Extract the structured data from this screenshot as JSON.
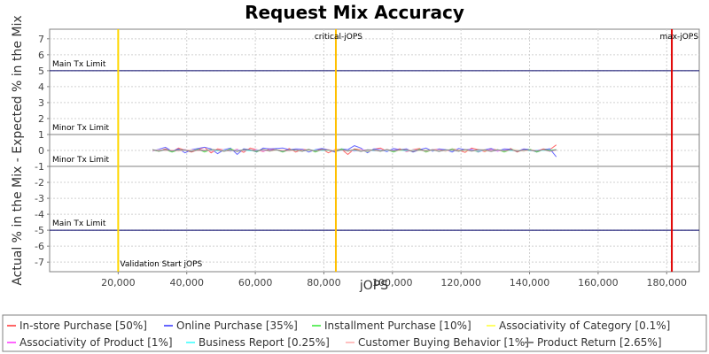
{
  "chart_data": {
    "type": "line",
    "title": "Request Mix Accuracy",
    "xlabel": "jOPS",
    "ylabel": "Actual % in the Mix - Expected % in the Mix",
    "xlim": [
      0,
      189500
    ],
    "ylim": [
      -7.6,
      7.6
    ],
    "xticks": [
      20000,
      40000,
      60000,
      80000,
      100000,
      120000,
      140000,
      160000,
      180000
    ],
    "xtick_labels": [
      "20,000",
      "40,000",
      "60,000",
      "80,000",
      "100,000",
      "120,000",
      "140,000",
      "160,000",
      "180,000"
    ],
    "yticks": [
      7,
      6,
      5,
      4,
      3,
      2,
      1,
      0,
      -1,
      -2,
      -3,
      -4,
      -5,
      -6,
      -7
    ],
    "grid": true,
    "legend_position": "bottom",
    "horizontal_lines": [
      {
        "y": 5,
        "label": "Main Tx Limit",
        "color": "#000066"
      },
      {
        "y": 1,
        "label": "Minor Tx Limit",
        "color": "#808080"
      },
      {
        "y": -1,
        "label": "Minor Tx Limit",
        "color": "#808080"
      },
      {
        "y": -5,
        "label": "Main Tx Limit",
        "color": "#000066"
      }
    ],
    "vertical_lines": [
      {
        "x": 20000,
        "label": "Validation Start jOPS",
        "color": "#FFD700",
        "label_pos": "bottom"
      },
      {
        "x": 83500,
        "label": "critical-jOPS",
        "color": "#FFC000",
        "label_pos": "top"
      },
      {
        "x": 181500,
        "label": "max-jOPS",
        "color": "#E00000",
        "label_pos": "top"
      }
    ],
    "series": [
      {
        "name": "In-store Purchase [50%]",
        "color": "#FF6666",
        "x_start": 30000,
        "x_step": 1900,
        "values": [
          0.05,
          -0.05,
          0.1,
          -0.08,
          0.15,
          0.02,
          -0.1,
          0.05,
          0.2,
          -0.15,
          0.1,
          0.03,
          -0.05,
          0.08,
          -0.12,
          0.15,
          0.05,
          -0.08,
          0.1,
          0.02,
          -0.05,
          0.12,
          -0.1,
          0.08,
          0.02,
          -0.05,
          0.1,
          -0.15,
          0.05,
          0.08,
          -0.25,
          0.1,
          0.05,
          -0.1,
          0.08,
          0.15,
          -0.05,
          0.02,
          0.1,
          -0.08,
          0.05,
          0.12,
          -0.1,
          0.05,
          0.08,
          -0.05,
          0.1,
          0.02,
          -0.12,
          0.15,
          0.05,
          -0.08,
          0.1,
          0.02,
          -0.05,
          0.12,
          -0.1,
          0.08,
          0.02,
          -0.05,
          0.1,
          0.05,
          0.35
        ]
      },
      {
        "name": "Online Purchase [35%]",
        "color": "#6666FF",
        "x_start": 30000,
        "x_step": 1900,
        "values": [
          -0.05,
          0.08,
          0.2,
          -0.05,
          0.1,
          -0.15,
          0.05,
          0.12,
          0.2,
          0.1,
          -0.2,
          0.05,
          0.15,
          -0.25,
          0.1,
          0.05,
          -0.1,
          0.15,
          0.1,
          0.12,
          0.15,
          0.05,
          0.1,
          0.08,
          -0.1,
          0.05,
          0.12,
          0.05,
          -0.1,
          0.1,
          0.05,
          0.3,
          0.15,
          -0.15,
          0.1,
          0.05,
          -0.08,
          0.12,
          0.05,
          0.1,
          -0.1,
          0.05,
          0.15,
          -0.05,
          0.1,
          0.05,
          -0.1,
          0.12,
          0.05,
          0.08,
          -0.1,
          0.05,
          0.12,
          -0.05,
          0.1,
          0.08,
          -0.05,
          0.1,
          0.05,
          -0.1,
          0.05,
          0.1,
          -0.4
        ]
      },
      {
        "name": "Installment Purchase [10%]",
        "color": "#66EE66",
        "x_start": 30000,
        "x_step": 1900,
        "values": [
          0.02,
          -0.05,
          0.05,
          -0.1,
          0.03,
          0.05,
          -0.05,
          0.08,
          -0.1,
          0.05,
          0.02,
          -0.05,
          0.1,
          -0.05,
          0.05,
          0.03,
          -0.08,
          0.05,
          -0.05,
          0.05,
          -0.1,
          0.05,
          0.03,
          -0.05,
          0.08,
          -0.1,
          0.05,
          0.02,
          -0.05,
          0.1,
          -0.05,
          0.05,
          0.03,
          -0.08,
          0.05,
          -0.05,
          0.05,
          -0.1,
          0.05,
          0.03,
          -0.05,
          0.08,
          -0.1,
          0.05,
          0.02,
          -0.05,
          0.1,
          -0.05,
          0.05,
          0.03,
          -0.08,
          0.05,
          -0.05,
          0.05,
          -0.1,
          0.05,
          0.03,
          -0.05,
          0.08,
          -0.1,
          0.05,
          0.02,
          0.05
        ]
      },
      {
        "name": "Associativity of Category [0.1%]",
        "color": "#FFFF66",
        "x_start": 30000,
        "x_step": 1900,
        "values": [
          0.01,
          -0.01,
          0.01,
          0.0,
          -0.01,
          0.01,
          0.0,
          0.01,
          -0.01,
          0.0,
          0.01,
          -0.01,
          0.01,
          0.0,
          -0.01,
          0.01,
          0.0,
          0.01,
          -0.01,
          0.0,
          0.01,
          -0.01,
          0.01,
          0.0,
          -0.01,
          0.01,
          0.0,
          0.01,
          -0.01,
          0.0,
          0.01,
          -0.01,
          0.01,
          0.0,
          -0.01,
          0.01,
          0.0,
          0.01,
          -0.01,
          0.0,
          0.01,
          -0.01,
          0.01,
          0.0,
          -0.01,
          0.01,
          0.0,
          0.01,
          -0.01,
          0.0,
          0.01,
          -0.01,
          0.01,
          0.0,
          -0.01,
          0.01,
          0.0,
          0.01,
          -0.01,
          0.0,
          0.01,
          -0.01,
          0.01
        ]
      },
      {
        "name": "Associativity of Product [1%]",
        "color": "#FF66FF",
        "x_start": 30000,
        "x_step": 1900,
        "values": [
          0.03,
          -0.02,
          0.04,
          -0.03,
          0.02,
          0.05,
          -0.04,
          0.02,
          0.03,
          -0.05,
          0.04,
          0.02,
          -0.03,
          0.05,
          -0.02,
          0.03,
          0.04,
          -0.05,
          0.02,
          0.03,
          -0.04,
          0.05,
          0.02,
          -0.03,
          0.04,
          -0.02,
          0.03,
          0.05,
          -0.04,
          0.02,
          0.03,
          -0.05,
          0.04,
          0.02,
          -0.03,
          0.05,
          -0.02,
          0.03,
          0.04,
          -0.05,
          0.02,
          0.03,
          -0.04,
          0.05,
          0.02,
          -0.03,
          0.04,
          -0.02,
          0.03,
          0.05,
          -0.04,
          0.02,
          0.03,
          -0.05,
          0.04,
          0.02,
          -0.03,
          0.05,
          -0.02,
          0.03,
          0.04,
          -0.05,
          0.02
        ]
      },
      {
        "name": "Business Report [0.25%]",
        "color": "#66FFFF",
        "x_start": 30000,
        "x_step": 1900,
        "values": [
          0.01,
          0.0,
          -0.01,
          0.02,
          -0.01,
          0.0,
          0.01,
          -0.02,
          0.01,
          0.0,
          -0.01,
          0.02,
          -0.01,
          0.0,
          0.01,
          -0.02,
          0.01,
          0.0,
          -0.01,
          0.02,
          -0.01,
          0.0,
          0.01,
          -0.02,
          0.01,
          0.0,
          -0.01,
          0.02,
          -0.01,
          0.0,
          0.01,
          -0.02,
          0.01,
          0.0,
          -0.01,
          0.02,
          -0.01,
          0.0,
          0.01,
          -0.02,
          0.01,
          0.0,
          -0.01,
          0.02,
          -0.01,
          0.0,
          0.01,
          -0.02,
          0.01,
          0.0,
          -0.01,
          0.02,
          -0.01,
          0.0,
          0.01,
          -0.02,
          0.01,
          0.0,
          -0.01,
          0.02,
          -0.01,
          0.0,
          0.01
        ]
      },
      {
        "name": "Customer Buying Behavior [1%]",
        "color": "#FFC0C0",
        "x_start": 30000,
        "x_step": 1900,
        "values": [
          -0.03,
          0.04,
          -0.02,
          0.03,
          -0.05,
          0.02,
          0.04,
          -0.03,
          0.02,
          -0.04,
          0.05,
          -0.02,
          0.03,
          -0.04,
          0.02,
          0.05,
          -0.03,
          0.02,
          -0.04,
          0.03,
          0.02,
          -0.05,
          0.04,
          -0.02,
          0.03,
          -0.04,
          0.02,
          0.05,
          -0.03,
          0.02,
          -0.04,
          0.03,
          0.02,
          -0.05,
          0.04,
          -0.02,
          0.03,
          -0.04,
          0.02,
          0.05,
          -0.03,
          0.02,
          -0.04,
          0.03,
          0.02,
          -0.05,
          0.04,
          -0.02,
          0.03,
          -0.04,
          0.02,
          0.05,
          -0.03,
          0.02,
          -0.04,
          0.03,
          0.02,
          -0.05,
          0.04,
          -0.02,
          0.03,
          -0.04,
          0.02
        ]
      },
      {
        "name": "Product Return [2.65%]",
        "color": "#808080",
        "x_start": 30000,
        "x_step": 1900,
        "values": [
          0.05,
          -0.04,
          0.06,
          -0.05,
          0.04,
          0.02,
          -0.06,
          0.05,
          -0.03,
          0.06,
          0.02,
          -0.05,
          0.04,
          -0.06,
          0.05,
          0.03,
          -0.04,
          0.06,
          -0.02,
          0.05,
          -0.06,
          0.04,
          0.02,
          -0.05,
          0.06,
          -0.04,
          0.05,
          0.03,
          -0.06,
          0.04,
          -0.02,
          0.05,
          -0.06,
          0.04,
          0.02,
          -0.05,
          0.06,
          -0.04,
          0.05,
          0.03,
          -0.06,
          0.04,
          -0.02,
          0.05,
          -0.06,
          0.04,
          0.02,
          -0.05,
          0.06,
          -0.04,
          0.05,
          0.03,
          -0.06,
          0.04,
          -0.02,
          0.05,
          -0.06,
          0.04,
          0.02,
          -0.05,
          0.06,
          -0.04,
          0.05
        ]
      }
    ]
  }
}
